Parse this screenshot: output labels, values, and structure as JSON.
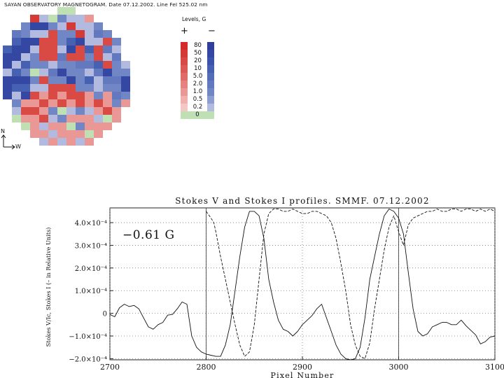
{
  "magnetogram": {
    "title": "SAYAN OBSERVATORY MAGNETOGRAM. Date 07.12.2002. Line FeI 525.02 nm",
    "legend_title": "Levels, G",
    "positive_sign": "+",
    "negative_sign": "−",
    "orientation": {
      "north": "N",
      "west": "W"
    },
    "levels": [
      "80",
      "50",
      "20",
      "10",
      "5.0",
      "2.0",
      "1.0",
      "0.5",
      "0.2",
      "0"
    ],
    "positive_colors": [
      "#d42a2a",
      "#d53b36",
      "#d94a45",
      "#dc5a55",
      "#e06c68",
      "#e58280",
      "#ea9896",
      "#efb0ae",
      "#f2c7c4"
    ],
    "negative_colors": [
      "#2f3f9b",
      "#3347a3",
      "#3b53ab",
      "#4660b2",
      "#546db9",
      "#6279bf",
      "#7187c5",
      "#8e9ed0",
      "#b2bbdf"
    ],
    "zero_color": "#bfe0b3",
    "grid_rows": [
      "....rnxxrr....",
      "..mXnxmnnr....",
      ".bmBBmnXnnm...",
      ".bmnnRmmXnbm..",
      "BMBBRRmMBnnRm.",
      "MBBnRRnBRMRbn.",
      "BBnmRRbRRmRnb.",
      "BnMmmnmmbbMRmn",
      "nMmxnbBmmnbBmm",
      "BBBmRmmBmMnbbB",
      "BMMnnRRRmmnmmB",
      "BnBRrRrRRrmrbm",
      ".mrrRrRrRrRrmr",
      ".nRRrmxnmnrRr.",
      ".xrrRnmrrrnxr.",
      "..xrnrrxmrrr..",
      "...rrnrrrxr...",
      "....nrnrnr...."
    ]
  },
  "chart_data": {
    "type": "line",
    "title": "Stokes V and Stokes I profiles. SMMF. 07.12.2002",
    "xlabel": "Pixel Number",
    "ylabel": "Stokes V/Ic, Stokes I (– in Relative Units)",
    "annotation": "−0.61  G",
    "xlim": [
      2700,
      3100
    ],
    "ylim": [
      -0.000205,
      0.000465
    ],
    "x_ticks": [
      2700,
      2800,
      2900,
      3000,
      3100
    ],
    "x_tick_labels": [
      "2700",
      "2800",
      "2900",
      "3000",
      "3100"
    ],
    "y_ticks": [
      -0.0002,
      -0.0001,
      0,
      0.0001,
      0.0002,
      0.0003,
      0.0004
    ],
    "y_tick_labels": [
      "−2.0×10⁻⁴",
      "−1.0×10⁻⁴",
      "0",
      "1.0×10⁻⁴",
      "2.0×10⁻⁴",
      "3.0×10⁻⁴",
      "4.0×10⁻⁴"
    ],
    "grid": "dotted",
    "vertical_markers": [
      2800,
      3000
    ],
    "series": [
      {
        "style": "solid",
        "x": [
          2700,
          2705,
          2710,
          2715,
          2720,
          2725,
          2730,
          2735,
          2740,
          2745,
          2750,
          2755,
          2760,
          2765,
          2770,
          2775,
          2780,
          2785,
          2790,
          2795,
          2800,
          2805,
          2810,
          2815,
          2820,
          2825,
          2830,
          2835,
          2840,
          2845,
          2850,
          2855,
          2860,
          2865,
          2870,
          2875,
          2880,
          2885,
          2890,
          2895,
          2900,
          2905,
          2910,
          2915,
          2920,
          2925,
          2930,
          2935,
          2940,
          2945,
          2950,
          2955,
          2960,
          2965,
          2970,
          2975,
          2980,
          2985,
          2990,
          2995,
          3000,
          3005,
          3010,
          3015,
          3020,
          3025,
          3030,
          3035,
          3040,
          3045,
          3050,
          3055,
          3060,
          3065,
          3070,
          3075,
          3080,
          3085,
          3090,
          3095,
          3100
        ],
        "y": [
          -5e-06,
          -1.5e-05,
          2.5e-05,
          4e-05,
          3e-05,
          3.5e-05,
          2e-05,
          -2e-05,
          -6e-05,
          -7e-05,
          -5e-05,
          -4e-05,
          -8e-06,
          -5e-06,
          2e-05,
          5e-05,
          4e-05,
          -0.0001,
          -0.00015,
          -0.00017,
          -0.00018,
          -0.000185,
          -0.00019,
          -0.00019,
          -0.00014,
          -5e-05,
          0.0001,
          0.00025,
          0.00038,
          0.00045,
          0.00045,
          0.00043,
          0.00033,
          0.00015,
          5e-05,
          -3e-05,
          -7e-05,
          -8e-05,
          -0.0001,
          -8e-05,
          -5e-05,
          -3e-05,
          -1e-05,
          2e-05,
          4e-05,
          -2e-05,
          -8e-05,
          -0.00014,
          -0.00018,
          -0.0002,
          -0.00021,
          -0.0002,
          -0.00015,
          -2e-05,
          0.00015,
          0.00025,
          0.00035,
          0.00043,
          0.00046,
          0.00045,
          0.00042,
          0.00035,
          0.00018,
          2e-05,
          -8e-05,
          -0.0001,
          -9e-05,
          -6e-05,
          -5e-05,
          -4e-05,
          -4e-05,
          -5e-05,
          -5e-05,
          -3e-05,
          -5.5e-05,
          -7.5e-05,
          -9.5e-05,
          -0.000135,
          -0.000125,
          -0.000105,
          -0.0001
        ]
      },
      {
        "style": "dashed",
        "x": [
          2800,
          2805,
          2808,
          2810,
          2815,
          2820,
          2825,
          2830,
          2835,
          2840,
          2845,
          2850,
          2855,
          2860,
          2865,
          2870,
          2875,
          2880,
          2885,
          2890,
          2895,
          2900,
          2905,
          2910,
          2915,
          2920,
          2925,
          2930,
          2935,
          2940,
          2945,
          2950,
          2955,
          2960,
          2965,
          2970,
          2975,
          2980,
          2985,
          2990,
          2995,
          3000,
          3005,
          3010,
          3015,
          3020,
          3025,
          3030,
          3035,
          3040,
          3045,
          3050,
          3055,
          3060,
          3065,
          3070,
          3075,
          3080,
          3085,
          3090,
          3095,
          3100
        ],
        "y": [
          0.00045,
          0.00042,
          0.0004,
          0.00036,
          0.00025,
          0.00015,
          5e-05,
          -5e-05,
          -0.00014,
          -0.00019,
          -0.00017,
          -5e-05,
          0.00015,
          0.00035,
          0.00044,
          0.00046,
          0.00046,
          0.00045,
          0.00045,
          0.00046,
          0.00045,
          0.00044,
          0.00044,
          0.00045,
          0.00045,
          0.00044,
          0.00043,
          0.0004,
          0.00033,
          0.00022,
          0.0001,
          -5e-05,
          -0.00014,
          -0.00019,
          -0.0002,
          -0.00013,
          2e-05,
          0.00015,
          0.00028,
          0.00038,
          0.00043,
          0.00036,
          0.0003,
          0.00039,
          0.00042,
          0.00043,
          0.00044,
          0.00045,
          0.00045,
          0.00046,
          0.00045,
          0.00045,
          0.00046,
          0.00046,
          0.00045,
          0.00046,
          0.00046,
          0.00045,
          0.00046,
          0.00045,
          0.00046,
          0.00045
        ]
      }
    ]
  }
}
